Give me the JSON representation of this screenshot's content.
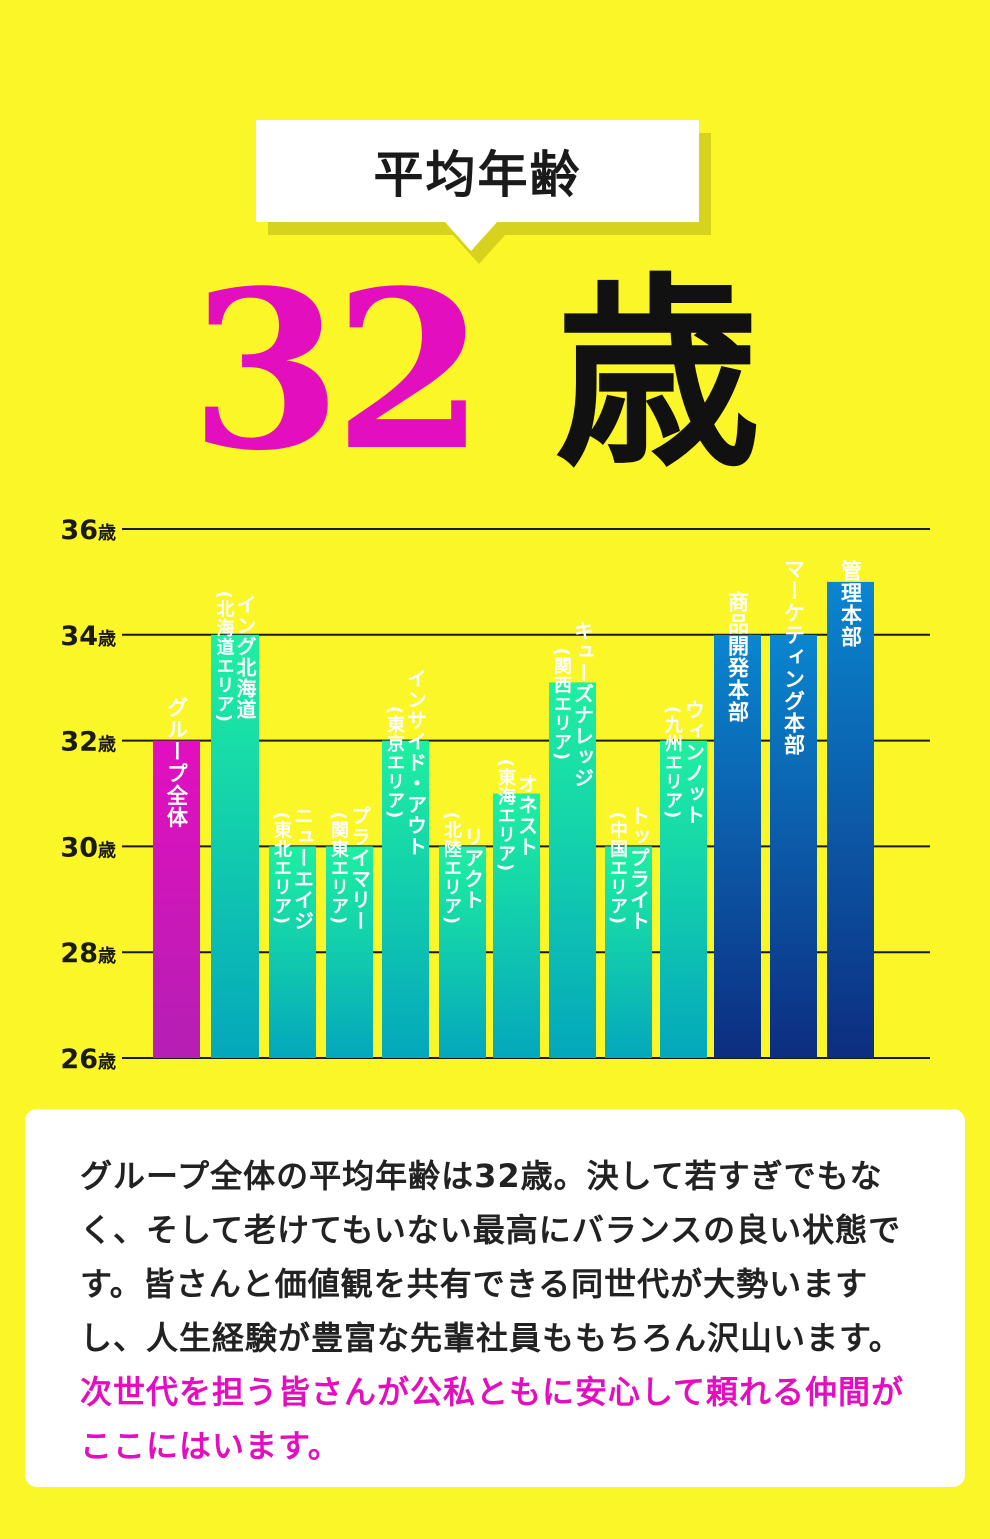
{
  "header": {
    "title": "平均年齢",
    "value": "32",
    "unit": "歳"
  },
  "chart_data": {
    "type": "bar",
    "ylim": [
      26,
      36
    ],
    "yticks": [
      26,
      28,
      30,
      32,
      34,
      36
    ],
    "ytick_labels": [
      "26歳",
      "28歳",
      "30歳",
      "32歳",
      "34歳",
      "36歳"
    ],
    "grid": true,
    "categories": [
      "グループ全体",
      "イング北海道(北海道エリア)",
      "ニューエイジ(東北エリア)",
      "プライマリー(関東エリア)",
      "インサイド・アウト(東京エリア)",
      "リアクト(北陸エリア)",
      "オネスト(東海エリア)",
      "キューズナレッジ(関西エリア)",
      "トップライト(中国エリア)",
      "ウィンノット(九州エリア)",
      "商品開発本部",
      "マーケティング本部",
      "管理本部"
    ],
    "values": [
      32,
      34,
      30,
      30,
      32,
      30,
      31,
      33.1,
      30,
      32,
      34,
      34,
      35
    ],
    "bar_colors": {
      "group": [
        "#e20fc0",
        "#b51fb3"
      ],
      "area": [
        "#1ff0a0",
        "#04a7bc"
      ],
      "hq": [
        "#0a86cf",
        "#0d2d80"
      ]
    }
  },
  "bar_labels": [
    {
      "main": "グループ全体",
      "sub": ""
    },
    {
      "main": "イング北海道",
      "sub": "北海道エリア"
    },
    {
      "main": "ニューエイジ",
      "sub": "東北エリア"
    },
    {
      "main": "プライマリー",
      "sub": "関東エリア"
    },
    {
      "main": "インサイド・アウト",
      "sub": "東京エリア"
    },
    {
      "main": "リアクト",
      "sub": "北陸エリア"
    },
    {
      "main": "オネスト",
      "sub": "東海エリア"
    },
    {
      "main": "キューズナレッジ",
      "sub": "関西エリア"
    },
    {
      "main": "トップライト",
      "sub": "中国エリア"
    },
    {
      "main": "ウィンノット",
      "sub": "九州エリア"
    },
    {
      "main": "商品開発本部",
      "sub": ""
    },
    {
      "main": "マーケティング本部",
      "sub": ""
    },
    {
      "main": "管理本部",
      "sub": ""
    }
  ],
  "description": {
    "text": "グループ全体の平均年齢は32歳。決して若すぎでもなく、そして老けてもいない最高にバランスの良い状態です。皆さんと価値観を共有できる同世代が大勢いますし、人生経験が豊富な先輩社員ももちろん沢山います。",
    "highlight": "次世代を担う皆さんが公私ともに安心して頼れる仲間がここにはいます。",
    "highlight_color": "#e30fbf"
  }
}
